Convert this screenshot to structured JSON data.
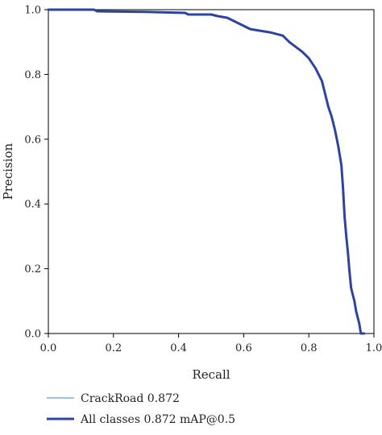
{
  "chart_data": {
    "type": "line",
    "title": "",
    "xlabel": "Recall",
    "ylabel": "Precision",
    "xlim": [
      0.0,
      1.0
    ],
    "ylim": [
      0.0,
      1.0
    ],
    "xticks": [
      "0.0",
      "0.2",
      "0.4",
      "0.6",
      "0.8",
      "1.0"
    ],
    "yticks": [
      "0.0",
      "0.2",
      "0.4",
      "0.6",
      "0.8",
      "1.0"
    ],
    "grid": false,
    "legend_position": "bottom",
    "series": [
      {
        "name": "CrackRoad 0.872",
        "color": "#3a86d8",
        "width": 1,
        "x": [
          0.0,
          0.14,
          0.15,
          0.3,
          0.42,
          0.43,
          0.5,
          0.52,
          0.55,
          0.58,
          0.62,
          0.68,
          0.72,
          0.74,
          0.78,
          0.8,
          0.82,
          0.84,
          0.85,
          0.86,
          0.87,
          0.88,
          0.89,
          0.9,
          0.905,
          0.91,
          0.915,
          0.92,
          0.925,
          0.93,
          0.935,
          0.94,
          0.945,
          0.95,
          0.955,
          0.96,
          0.965,
          0.97
        ],
        "y": [
          1.0,
          1.0,
          0.995,
          0.993,
          0.99,
          0.985,
          0.985,
          0.98,
          0.975,
          0.96,
          0.94,
          0.93,
          0.92,
          0.9,
          0.87,
          0.85,
          0.82,
          0.78,
          0.74,
          0.7,
          0.67,
          0.63,
          0.58,
          0.52,
          0.45,
          0.36,
          0.3,
          0.25,
          0.19,
          0.14,
          0.12,
          0.1,
          0.07,
          0.05,
          0.03,
          0.0,
          0.0,
          0.0
        ]
      },
      {
        "name": "All classes 0.872 mAP@0.5",
        "color": "#2c44a0",
        "width": 3,
        "x": [
          0.0,
          0.14,
          0.15,
          0.3,
          0.42,
          0.43,
          0.5,
          0.52,
          0.55,
          0.58,
          0.62,
          0.68,
          0.72,
          0.74,
          0.78,
          0.8,
          0.82,
          0.84,
          0.85,
          0.86,
          0.87,
          0.88,
          0.89,
          0.9,
          0.905,
          0.91,
          0.915,
          0.92,
          0.925,
          0.93,
          0.935,
          0.94,
          0.945,
          0.95,
          0.955,
          0.96,
          0.965,
          0.97
        ],
        "y": [
          1.0,
          1.0,
          0.995,
          0.993,
          0.99,
          0.985,
          0.985,
          0.98,
          0.975,
          0.96,
          0.94,
          0.93,
          0.92,
          0.9,
          0.87,
          0.85,
          0.82,
          0.78,
          0.74,
          0.7,
          0.67,
          0.63,
          0.58,
          0.52,
          0.45,
          0.36,
          0.3,
          0.25,
          0.19,
          0.14,
          0.12,
          0.1,
          0.07,
          0.05,
          0.03,
          0.0,
          0.0,
          0.0
        ]
      }
    ]
  }
}
